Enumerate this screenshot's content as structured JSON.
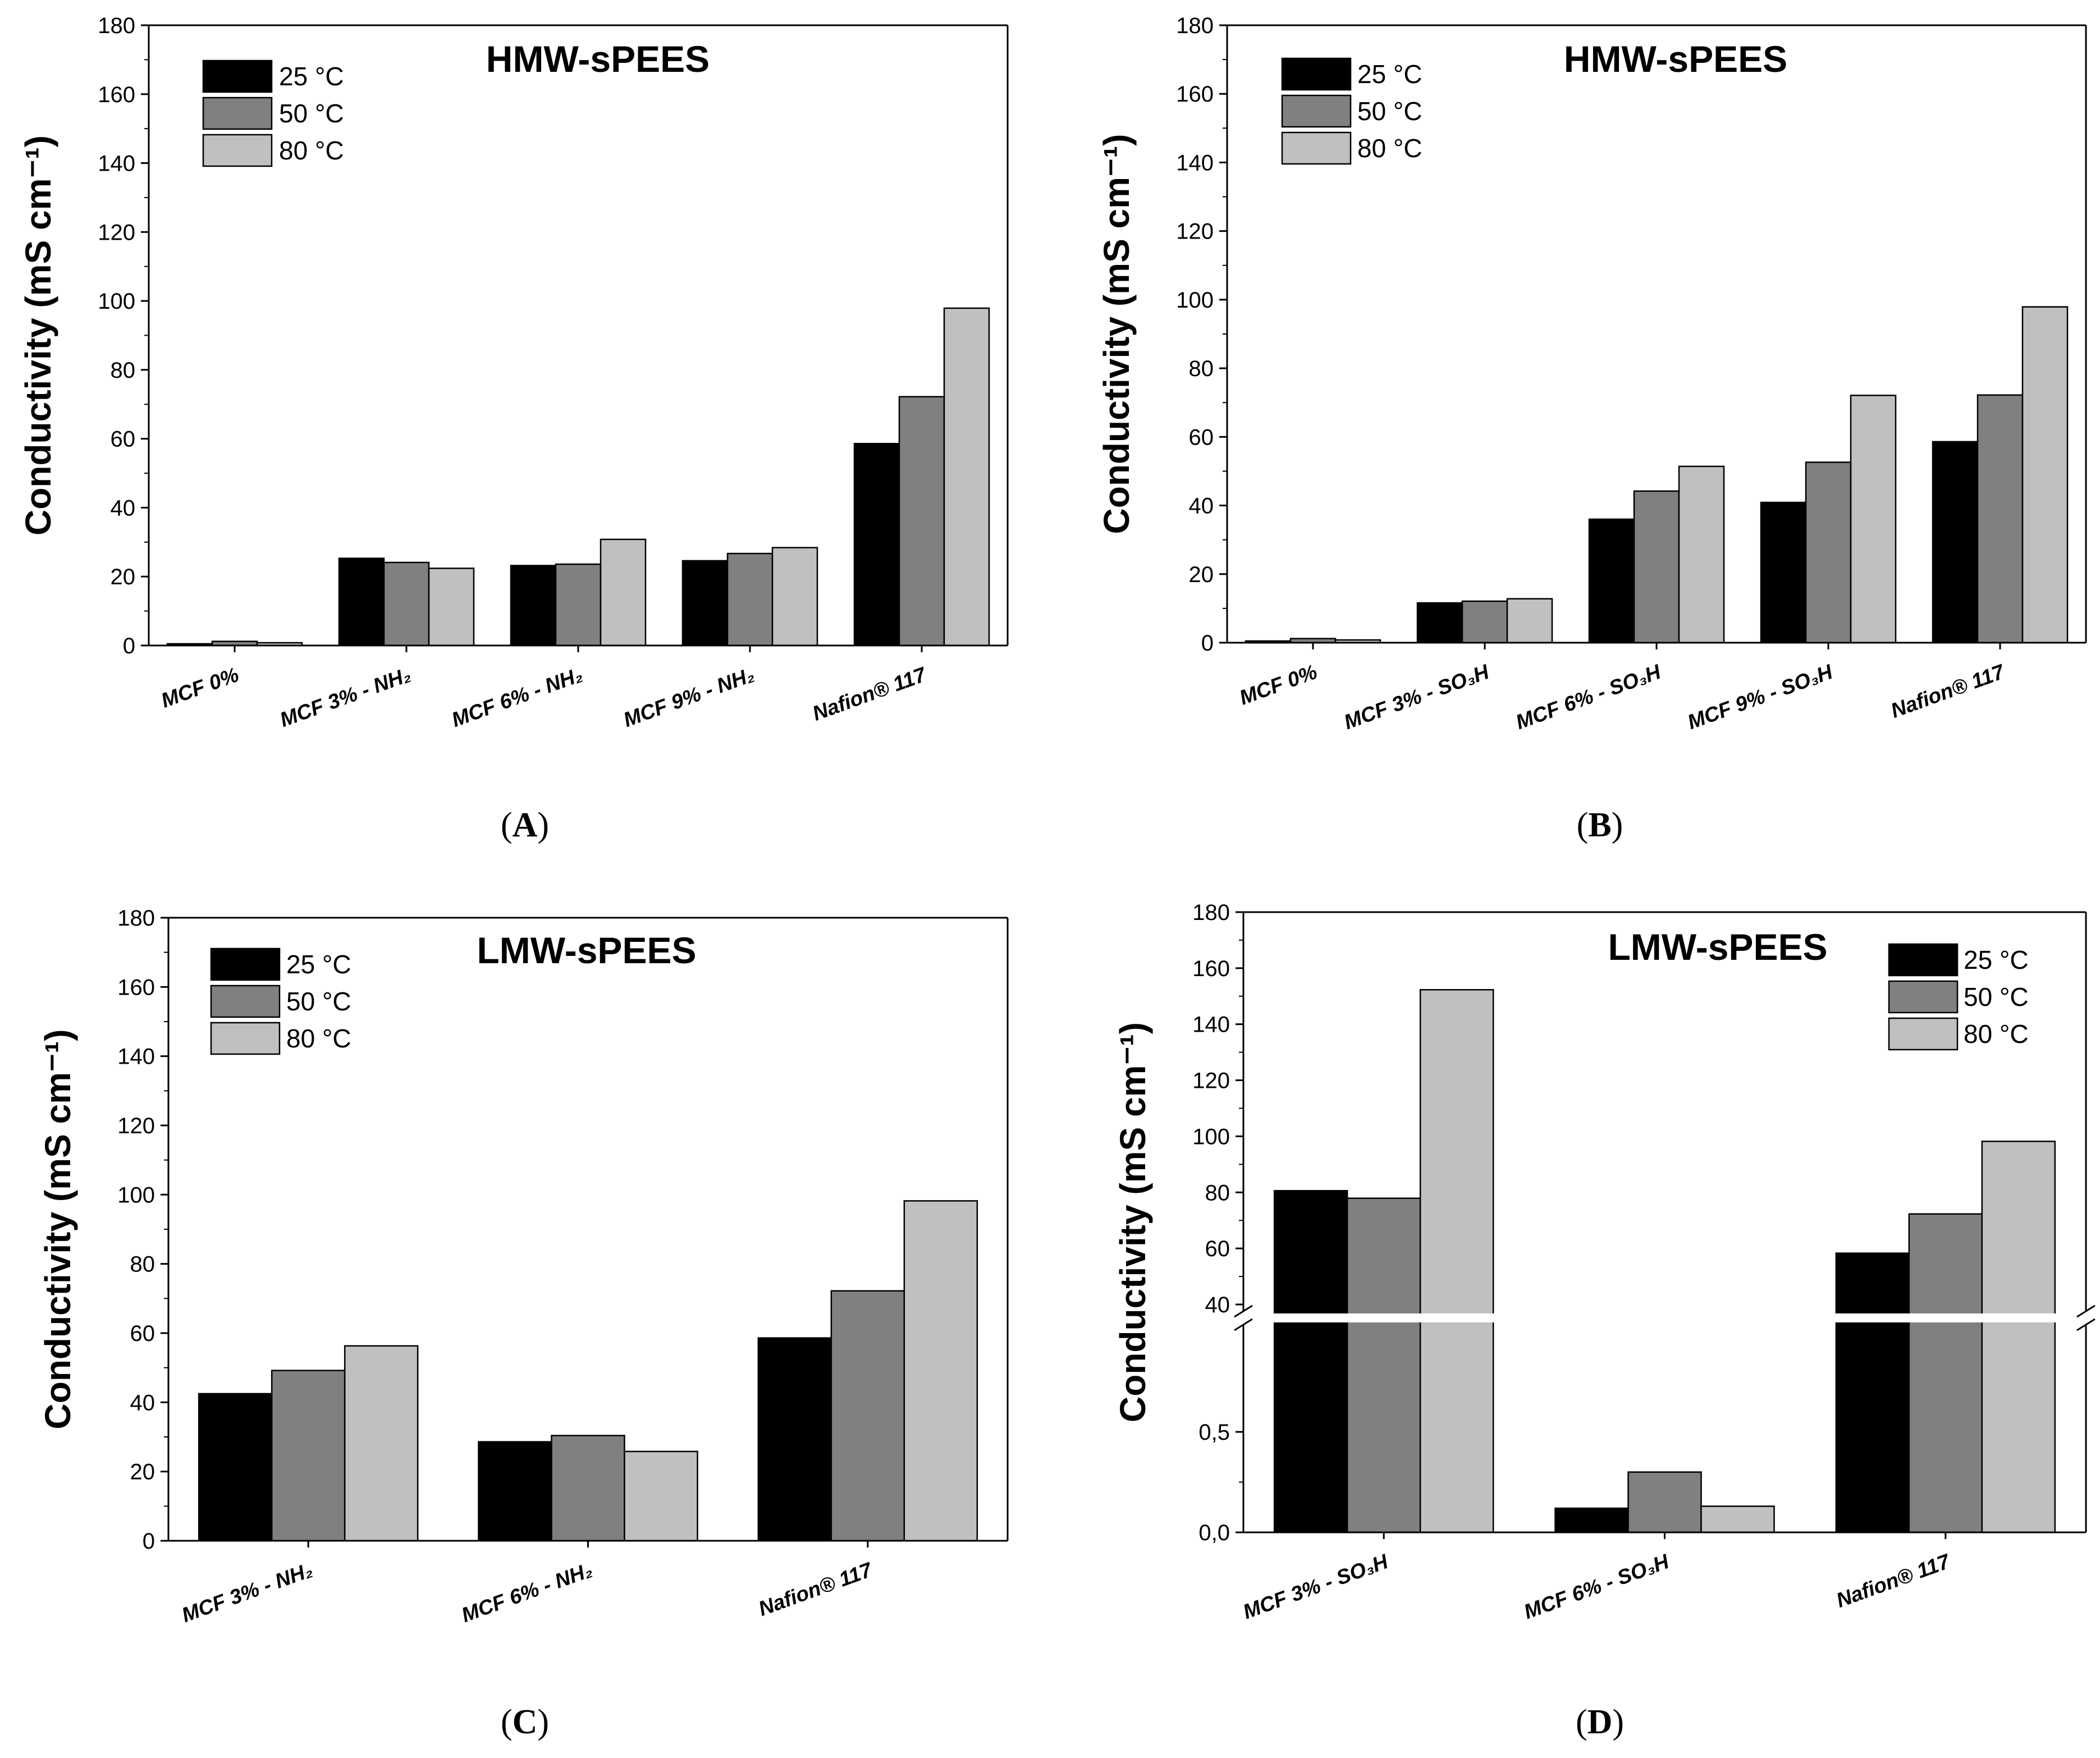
{
  "series_names": [
    "25 °C",
    "50 °C",
    "80 °C"
  ],
  "series_colors": [
    "#000000",
    "#808080",
    "#c0c0c0"
  ],
  "ylabel": "Conductivity (mS cm⁻¹)",
  "chart_data": [
    {
      "panel": "A",
      "type": "bar",
      "title": "HMW-sPEES",
      "ylabel": "Conductivity (mS cm⁻¹)",
      "ylim": [
        0,
        180
      ],
      "yticks": [
        "0",
        "20",
        "40",
        "60",
        "80",
        "100",
        "120",
        "140",
        "160",
        "180"
      ],
      "categories": [
        "MCF 0%",
        "MCF 3% - NH₂",
        "MCF 6% - NH₂",
        "MCF 9% - NH₂",
        "Nafion® 117"
      ],
      "series": [
        {
          "name": "25 °C",
          "values": [
            0.5,
            25.3,
            23.2,
            24.6,
            58.6
          ]
        },
        {
          "name": "50 °C",
          "values": [
            1.2,
            24.1,
            23.6,
            26.7,
            72.2
          ]
        },
        {
          "name": "80 °C",
          "values": [
            0.8,
            22.4,
            30.8,
            28.4,
            97.9
          ]
        }
      ],
      "legend": "top-left",
      "grid": false
    },
    {
      "panel": "B",
      "type": "bar",
      "title": "HMW-sPEES",
      "ylabel": "Conductivity (mS cm⁻¹)",
      "ylim": [
        0,
        180
      ],
      "yticks": [
        "0",
        "20",
        "40",
        "60",
        "80",
        "100",
        "120",
        "140",
        "160",
        "180"
      ],
      "categories": [
        "MCF 0%",
        "MCF 3% - SO₃H",
        "MCF 6% - SO₃H",
        "MCF 9% - SO₃H",
        "Nafion® 117"
      ],
      "series": [
        {
          "name": "25 °C",
          "values": [
            0.5,
            11.6,
            36.0,
            40.9,
            58.6
          ]
        },
        {
          "name": "50 °C",
          "values": [
            1.2,
            12.1,
            44.2,
            52.6,
            72.2
          ]
        },
        {
          "name": "80 °C",
          "values": [
            0.8,
            12.8,
            51.4,
            72.1,
            97.9
          ]
        }
      ],
      "legend": "top-left",
      "grid": false
    },
    {
      "panel": "C",
      "type": "bar",
      "title": "LMW-sPEES",
      "ylabel": "Conductivity (mS cm⁻¹)",
      "ylim": [
        0,
        180
      ],
      "yticks": [
        "0",
        "20",
        "40",
        "60",
        "80",
        "100",
        "120",
        "140",
        "160",
        "180"
      ],
      "categories": [
        "MCF 3% - NH₂",
        "MCF 6% - NH₂",
        "Nafion® 117"
      ],
      "series": [
        {
          "name": "25 °C",
          "values": [
            42.5,
            28.6,
            58.6
          ]
        },
        {
          "name": "50 °C",
          "values": [
            49.2,
            30.4,
            72.2
          ]
        },
        {
          "name": "80 °C",
          "values": [
            56.3,
            25.8,
            98.2
          ]
        }
      ],
      "legend": "top-left",
      "grid": false
    },
    {
      "panel": "D",
      "type": "bar",
      "title": "LMW-sPEES",
      "ylabel": "Conductivity (mS cm⁻¹)",
      "axis_break": {
        "lower_range": [
          0,
          1
        ],
        "upper_range": [
          40,
          180
        ]
      },
      "yticks_lower": [
        "0,0",
        "0,5"
      ],
      "yticks_upper": [
        "40",
        "60",
        "80",
        "100",
        "120",
        "140",
        "160",
        "180"
      ],
      "categories": [
        "MCF 3% - SO₃H",
        "MCF 6% - SO₃H",
        "Nafion® 117"
      ],
      "series": [
        {
          "name": "25 °C",
          "values": [
            80.6,
            0.12,
            58.3
          ]
        },
        {
          "name": "50 °C",
          "values": [
            77.9,
            0.3,
            72.3
          ]
        },
        {
          "name": "80 °C",
          "values": [
            152.3,
            0.13,
            98.2
          ]
        }
      ],
      "legend": "top-right",
      "grid": false
    }
  ],
  "panel_labels": [
    {
      "open": "(",
      "letter": "A",
      "close": ")"
    },
    {
      "open": "(",
      "letter": "B",
      "close": ")"
    },
    {
      "open": "(",
      "letter": "C",
      "close": ")"
    },
    {
      "open": "(",
      "letter": "D",
      "close": ")"
    }
  ]
}
